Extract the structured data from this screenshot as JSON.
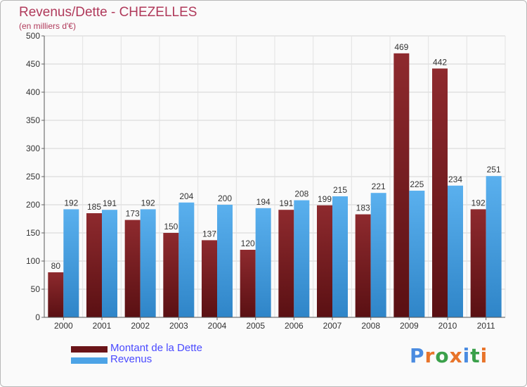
{
  "chart_data": {
    "type": "bar",
    "title": "Revenus/Dette - CHEZELLES",
    "subtitle": "(en milliers d'€)",
    "categories": [
      "2000",
      "2001",
      "2002",
      "2003",
      "2004",
      "2005",
      "2006",
      "2007",
      "2008",
      "2009",
      "2010",
      "2011"
    ],
    "series": [
      {
        "name": "Montant de la Dette",
        "color": "#7a1e22",
        "values": [
          80,
          185,
          173,
          150,
          137,
          120,
          191,
          199,
          183,
          469,
          442,
          192
        ]
      },
      {
        "name": "Revenus",
        "color": "#4ca3e6",
        "values": [
          192,
          191,
          192,
          204,
          200,
          194,
          208,
          215,
          221,
          225,
          234,
          251
        ]
      }
    ],
    "yticks": [
      0,
      50,
      100,
      150,
      200,
      250,
      300,
      350,
      400,
      450,
      500
    ],
    "ylim": [
      0,
      500
    ],
    "grid": true,
    "legend_position": "bottom-left"
  },
  "logo": {
    "text": "Proxiti",
    "letter_colors": [
      "#4a8be0",
      "#e8742a",
      "#3aa04a",
      "#e8742a",
      "#4a8be0",
      "#3aa04a",
      "#e8742a"
    ]
  }
}
